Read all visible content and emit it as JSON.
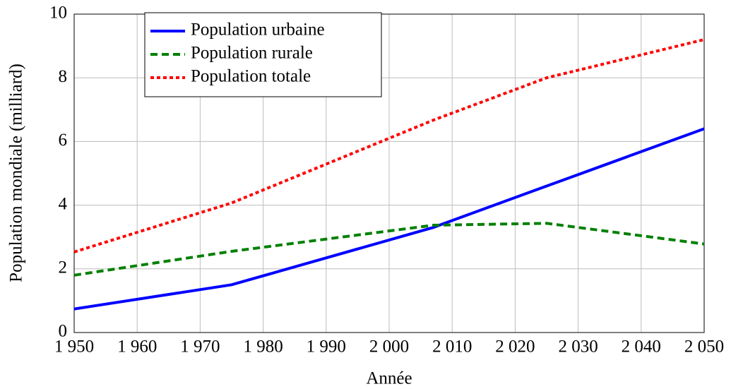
{
  "chart_data": {
    "type": "line",
    "xlabel": "Année",
    "ylabel": "Population mondiale (milliard)",
    "x": [
      1950,
      1975,
      2007,
      2025,
      2050
    ],
    "series": [
      {
        "name": "Population urbaine",
        "color": "#0000ff",
        "style": "solid",
        "values": [
          0.74,
          1.5,
          3.3,
          4.6,
          6.4
        ]
      },
      {
        "name": "Population rurale",
        "color": "#008000",
        "style": "dashed",
        "values": [
          1.8,
          2.55,
          3.37,
          3.43,
          2.78
        ]
      },
      {
        "name": "Population totale",
        "color": "#ff0000",
        "style": "dotted",
        "values": [
          2.53,
          4.07,
          6.67,
          8.0,
          9.2
        ]
      }
    ],
    "xlim": [
      1950,
      2050
    ],
    "xticks": [
      {
        "value": 1950,
        "label": "1 950"
      },
      {
        "value": 1960,
        "label": "1 960"
      },
      {
        "value": 1970,
        "label": "1 970"
      },
      {
        "value": 1980,
        "label": "1 980"
      },
      {
        "value": 1990,
        "label": "1 990"
      },
      {
        "value": 2000,
        "label": "2 000"
      },
      {
        "value": 2010,
        "label": "2 010"
      },
      {
        "value": 2020,
        "label": "2 020"
      },
      {
        "value": 2030,
        "label": "2 030"
      },
      {
        "value": 2040,
        "label": "2 040"
      },
      {
        "value": 2050,
        "label": "2 050"
      }
    ],
    "ylim": [
      0,
      10
    ],
    "yticks": [
      0,
      2,
      4,
      6,
      8,
      10
    ],
    "grid": true,
    "legend": "upper left"
  }
}
